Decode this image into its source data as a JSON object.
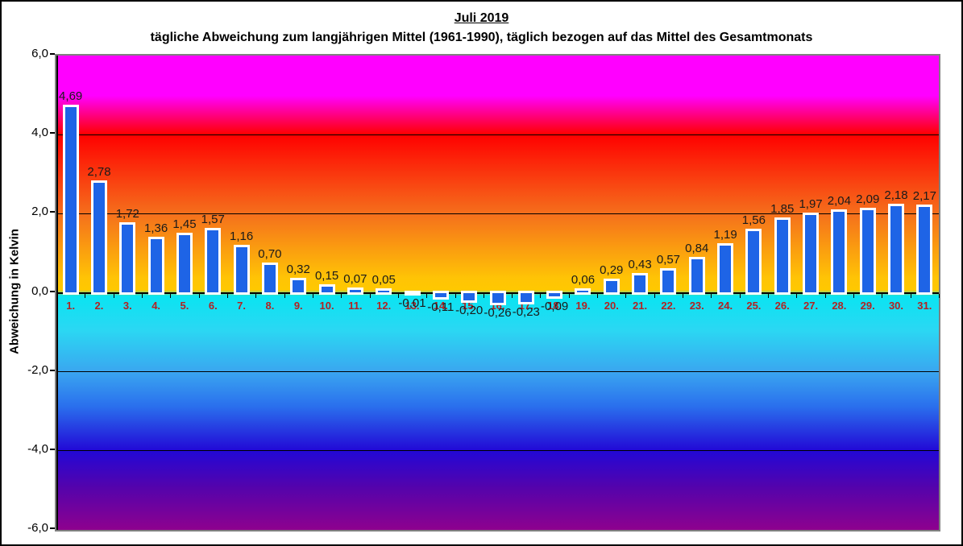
{
  "header": {
    "title": "Juli 2019",
    "subtitle": "tägliche Abweichung zum langjährigen Mittel (1961-1990), täglich bezogen auf das Mittel des Gesamtmonats"
  },
  "chart_data": {
    "type": "bar",
    "title": "Juli 2019",
    "subtitle": "tägliche Abweichung zum langjährigen Mittel (1961-1990), täglich bezogen auf das Mittel des Gesamtmonats",
    "xlabel": "",
    "ylabel": "Abweichung in Kelvin",
    "ylim": [
      -6.0,
      6.0
    ],
    "ytick_values": [
      6,
      4,
      2,
      0,
      -2,
      -4,
      -6
    ],
    "ytick_labels": [
      "6,0",
      "4,0",
      "2,0",
      "0,0",
      "-2,0",
      "-4,0",
      "-6,0"
    ],
    "gridline_values": [
      4,
      2,
      -2,
      -4
    ],
    "grid": true,
    "legend_position": "none",
    "categories": [
      "1.",
      "2.",
      "3.",
      "4.",
      "5.",
      "6.",
      "7.",
      "8.",
      "9.",
      "10.",
      "11.",
      "12.",
      "13.",
      "14.",
      "15.",
      "16.",
      "17.",
      "18.",
      "19.",
      "20.",
      "21.",
      "22.",
      "23.",
      "24.",
      "25.",
      "26.",
      "27.",
      "28.",
      "29.",
      "30.",
      "31."
    ],
    "values": [
      4.69,
      2.78,
      1.72,
      1.36,
      1.45,
      1.57,
      1.16,
      0.7,
      0.32,
      0.15,
      0.07,
      0.05,
      -0.01,
      -0.11,
      -0.2,
      -0.26,
      -0.23,
      -0.09,
      0.06,
      0.29,
      0.43,
      0.57,
      0.84,
      1.19,
      1.56,
      1.85,
      1.97,
      2.04,
      2.09,
      2.18,
      2.17
    ],
    "value_labels": [
      "4,69",
      "2,78",
      "1,72",
      "1,36",
      "1,45",
      "1,57",
      "1,16",
      "0,70",
      "0,32",
      "0,15",
      "0,07",
      "0,05",
      "-0,01",
      "-0,11",
      "-0,20",
      "-0,26",
      "-0,23",
      "-0,09",
      "0,06",
      "0,29",
      "0,43",
      "0,57",
      "0,84",
      "1,19",
      "1,56",
      "1,85",
      "1,97",
      "2,04",
      "2,09",
      "2,18",
      "2,17"
    ],
    "colors": {
      "bar_fill": "#1e64e6",
      "bar_border": "#ffffff",
      "value_label_text": "#1a1a1a",
      "category_label_text": "#b22222",
      "gridline": "#000000",
      "axis_line": "#000000",
      "plot_border": "#808080",
      "page_border": "#000000",
      "background_gradient_stops": [
        {
          "pos": 0,
          "color": "#ff00ff"
        },
        {
          "pos": 8.5,
          "color": "#ff00ff"
        },
        {
          "pos": 16.6,
          "color": "#ff0000"
        },
        {
          "pos": 33.5,
          "color": "#f5701c"
        },
        {
          "pos": 47,
          "color": "#ffc405"
        },
        {
          "pos": 49.4,
          "color": "#ffc800"
        },
        {
          "pos": 50.7,
          "color": "#0ae4f2"
        },
        {
          "pos": 58,
          "color": "#2bd7f3"
        },
        {
          "pos": 66.7,
          "color": "#3aa6f0"
        },
        {
          "pos": 74,
          "color": "#2a6fed"
        },
        {
          "pos": 83.3,
          "color": "#2208d6"
        },
        {
          "pos": 91,
          "color": "#5403ac"
        },
        {
          "pos": 100,
          "color": "#8e018e"
        }
      ]
    }
  }
}
